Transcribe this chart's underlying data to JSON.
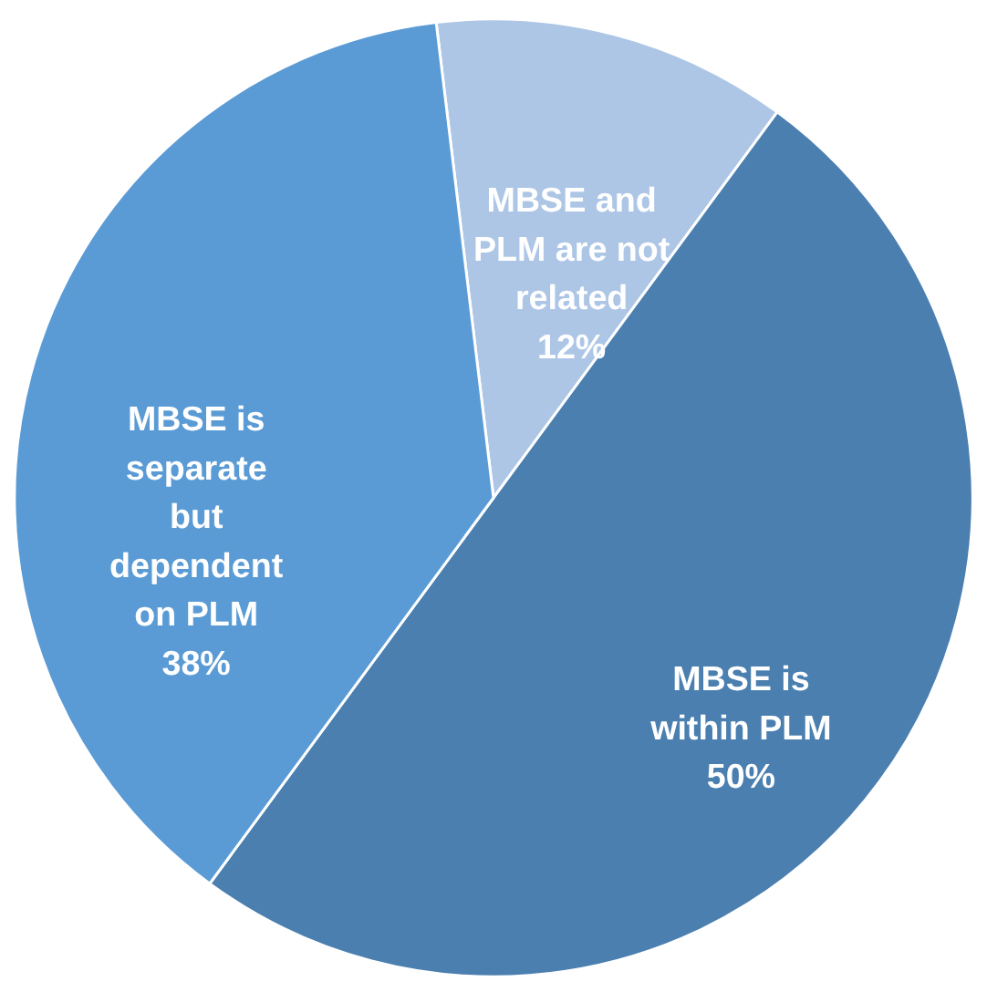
{
  "chart_data": {
    "type": "pie",
    "categories": [
      "MBSE and PLM are not related",
      "MBSE is within PLM",
      "MBSE is separate but dependent on PLM"
    ],
    "values": [
      12,
      50,
      38
    ],
    "colors": [
      "#adc6e6",
      "#4a7fb0",
      "#5b9bd5"
    ],
    "value_labels": [
      "12%",
      "50%",
      "38%"
    ],
    "legend": false
  }
}
